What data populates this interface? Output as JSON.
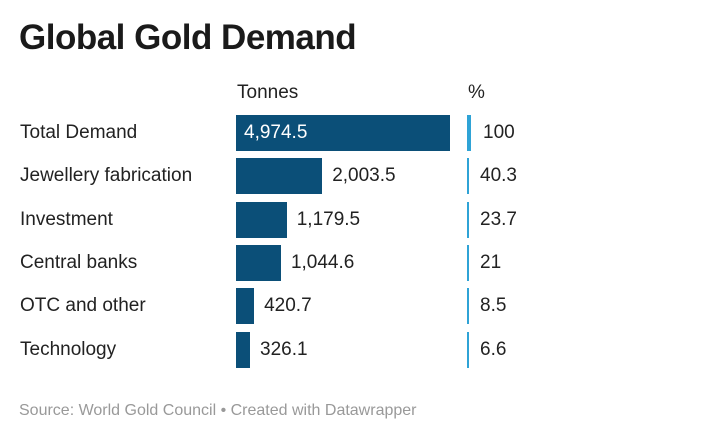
{
  "chart_data": {
    "type": "bar",
    "title": "Global Gold Demand",
    "columns": [
      "Tonnes",
      "%"
    ],
    "categories": [
      "Total Demand",
      "Jewellery fabrication",
      "Investment",
      "Central banks",
      "OTC and other",
      "Technology"
    ],
    "values": [
      4974.5,
      2003.5,
      1179.5,
      1044.6,
      420.7,
      326.1
    ],
    "value_labels": [
      "4,974.5",
      "2,003.5",
      "1,179.5",
      "1,044.6",
      "420.7",
      "326.1"
    ],
    "percent": [
      100,
      40.3,
      23.7,
      21,
      8.5,
      6.6
    ],
    "percent_labels": [
      "100",
      "40.3",
      "23.7",
      "21",
      "8.5",
      "6.6"
    ],
    "colors": {
      "bar": "#0b4f78",
      "percent_bar": "#2fa3d6"
    }
  },
  "footer": "Source: World Gold Council • Created with Datawrapper"
}
